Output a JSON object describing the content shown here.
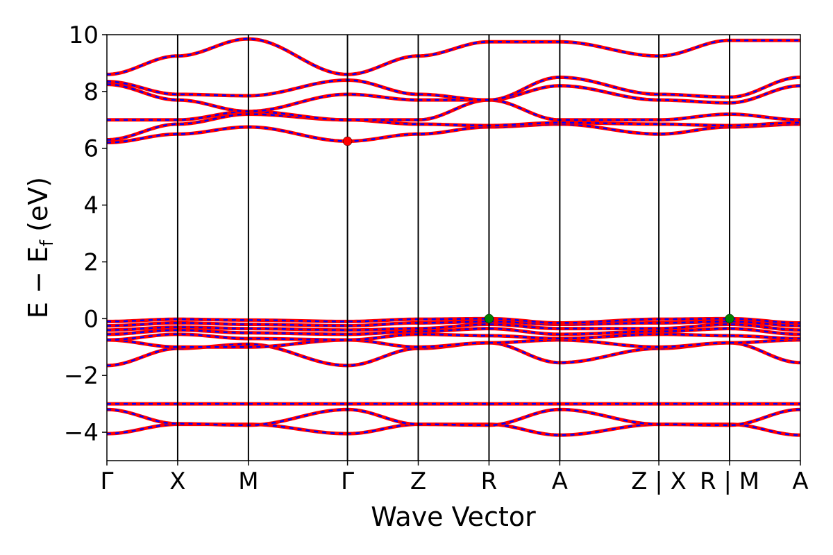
{
  "chart_data": {
    "type": "line",
    "title": "",
    "xlabel": "Wave Vector",
    "ylabel": "E − E",
    "ylabel_sub": "f",
    "ylabel_unit": " (eV)",
    "ylim": [
      -5,
      10
    ],
    "yticks": [
      -4,
      -2,
      0,
      2,
      4,
      6,
      8,
      10
    ],
    "ytick_labels": [
      "−4",
      "−2",
      "0",
      "2",
      "4",
      "6",
      "8",
      "10"
    ],
    "xlim": [
      0,
      9.8
    ],
    "high_symmetry_points": [
      {
        "label": "Γ",
        "x": 0
      },
      {
        "label": "X",
        "x": 1.0
      },
      {
        "label": "M",
        "x": 2.0
      },
      {
        "label": "Γ",
        "x": 3.4
      },
      {
        "label": "Z",
        "x": 4.4
      },
      {
        "label": "R",
        "x": 5.4
      },
      {
        "label": "A",
        "x": 6.4
      },
      {
        "label": "Z | X",
        "x": 7.8
      },
      {
        "label": "R | M",
        "x": 8.8
      },
      {
        "label": "A",
        "x": 9.8
      }
    ],
    "series_colors": {
      "spin_up": "#ff0000",
      "spin_down": "#0000ff"
    },
    "marker_colors": {
      "cbm": "#ff0000",
      "vbm": "#008000"
    },
    "band_edges": [
      {
        "kind": "cbm",
        "x": 3.4,
        "y": 6.25
      },
      {
        "kind": "vbm",
        "x": 5.4,
        "y": 0.0
      },
      {
        "kind": "vbm",
        "x": 8.8,
        "y": 0.0
      }
    ],
    "bands": [
      {
        "points": [
          [
            0,
            -4.05
          ],
          [
            1.0,
            -3.72
          ],
          [
            2.0,
            -3.72
          ],
          [
            3.4,
            -4.05
          ],
          [
            4.4,
            -3.72
          ],
          [
            5.4,
            -3.72
          ],
          [
            6.4,
            -4.1
          ],
          [
            7.8,
            -3.72
          ],
          [
            8.8,
            -3.72
          ],
          [
            9.8,
            -4.1
          ]
        ]
      },
      {
        "points": [
          [
            0,
            -3.2
          ],
          [
            1.0,
            -3.7
          ],
          [
            2.0,
            -3.75
          ],
          [
            3.4,
            -3.2
          ],
          [
            4.4,
            -3.72
          ],
          [
            5.4,
            -3.75
          ],
          [
            6.4,
            -3.2
          ],
          [
            7.8,
            -3.72
          ],
          [
            8.8,
            -3.75
          ],
          [
            9.8,
            -3.2
          ]
        ]
      },
      {
        "points": [
          [
            0,
            -3.0
          ],
          [
            1.0,
            -3.0
          ],
          [
            2.0,
            -3.0
          ],
          [
            3.4,
            -3.0
          ],
          [
            4.4,
            -3.0
          ],
          [
            5.4,
            -3.0
          ],
          [
            6.4,
            -3.0
          ],
          [
            7.8,
            -3.0
          ],
          [
            8.8,
            -3.0
          ],
          [
            9.8,
            -3.0
          ]
        ]
      },
      {
        "points": [
          [
            0,
            -1.65
          ],
          [
            1.0,
            -1.05
          ],
          [
            2.0,
            -0.9
          ],
          [
            3.4,
            -1.65
          ],
          [
            4.4,
            -1.05
          ],
          [
            5.4,
            -0.85
          ],
          [
            6.4,
            -1.55
          ],
          [
            7.8,
            -1.05
          ],
          [
            8.8,
            -0.85
          ],
          [
            9.8,
            -1.55
          ]
        ]
      },
      {
        "points": [
          [
            0,
            -0.75
          ],
          [
            1.0,
            -1.0
          ],
          [
            2.0,
            -1.0
          ],
          [
            3.4,
            -0.75
          ],
          [
            4.4,
            -1.0
          ],
          [
            5.4,
            -0.85
          ],
          [
            6.4,
            -0.75
          ],
          [
            7.8,
            -1.0
          ],
          [
            8.8,
            -0.85
          ],
          [
            9.8,
            -0.75
          ]
        ]
      },
      {
        "points": [
          [
            0,
            -0.75
          ],
          [
            1.0,
            -0.55
          ],
          [
            2.0,
            -0.7
          ],
          [
            3.4,
            -0.75
          ],
          [
            4.4,
            -0.55
          ],
          [
            5.4,
            -0.6
          ],
          [
            6.4,
            -0.7
          ],
          [
            7.8,
            -0.55
          ],
          [
            8.8,
            -0.6
          ],
          [
            9.8,
            -0.7
          ]
        ]
      },
      {
        "points": [
          [
            0,
            -0.55
          ],
          [
            1.0,
            -0.4
          ],
          [
            2.0,
            -0.5
          ],
          [
            3.4,
            -0.55
          ],
          [
            4.4,
            -0.45
          ],
          [
            5.4,
            -0.35
          ],
          [
            6.4,
            -0.55
          ],
          [
            7.8,
            -0.45
          ],
          [
            8.8,
            -0.35
          ],
          [
            9.8,
            -0.55
          ]
        ]
      },
      {
        "points": [
          [
            0,
            -0.4
          ],
          [
            1.0,
            -0.3
          ],
          [
            2.0,
            -0.35
          ],
          [
            3.4,
            -0.4
          ],
          [
            4.4,
            -0.35
          ],
          [
            5.4,
            -0.2
          ],
          [
            6.4,
            -0.35
          ],
          [
            7.8,
            -0.35
          ],
          [
            8.8,
            -0.2
          ],
          [
            9.8,
            -0.4
          ]
        ]
      },
      {
        "points": [
          [
            0,
            -0.25
          ],
          [
            1.0,
            -0.15
          ],
          [
            2.0,
            -0.2
          ],
          [
            3.4,
            -0.25
          ],
          [
            4.4,
            -0.15
          ],
          [
            5.4,
            -0.1
          ],
          [
            6.4,
            -0.2
          ],
          [
            7.8,
            -0.15
          ],
          [
            8.8,
            -0.1
          ],
          [
            9.8,
            -0.25
          ]
        ]
      },
      {
        "points": [
          [
            0,
            -0.1
          ],
          [
            1.0,
            -0.02
          ],
          [
            2.0,
            -0.05
          ],
          [
            3.4,
            -0.1
          ],
          [
            4.4,
            -0.02
          ],
          [
            5.4,
            0.0
          ],
          [
            6.4,
            -0.15
          ],
          [
            7.8,
            -0.02
          ],
          [
            8.8,
            0.0
          ],
          [
            9.8,
            -0.15
          ]
        ]
      },
      {
        "points": [
          [
            0,
            6.2
          ],
          [
            1.0,
            6.5
          ],
          [
            2.0,
            6.75
          ],
          [
            3.4,
            6.25
          ],
          [
            4.4,
            6.5
          ],
          [
            5.4,
            6.75
          ],
          [
            6.4,
            6.85
          ],
          [
            7.8,
            6.5
          ],
          [
            8.8,
            6.75
          ],
          [
            9.8,
            6.85
          ]
        ]
      },
      {
        "points": [
          [
            0,
            6.3
          ],
          [
            1.0,
            6.85
          ],
          [
            2.0,
            7.2
          ],
          [
            3.4,
            7.0
          ],
          [
            4.4,
            6.85
          ],
          [
            5.4,
            6.8
          ],
          [
            6.4,
            6.9
          ],
          [
            7.8,
            6.85
          ],
          [
            8.8,
            6.8
          ],
          [
            9.8,
            6.9
          ]
        ]
      },
      {
        "points": [
          [
            0,
            7.0
          ],
          [
            1.0,
            7.0
          ],
          [
            2.0,
            7.3
          ],
          [
            3.4,
            7.0
          ],
          [
            4.4,
            7.0
          ],
          [
            5.4,
            7.7
          ],
          [
            6.4,
            7.0
          ],
          [
            7.8,
            7.0
          ],
          [
            8.8,
            7.2
          ],
          [
            9.8,
            7.0
          ]
        ]
      },
      {
        "points": [
          [
            0,
            8.25
          ],
          [
            1.0,
            7.7
          ],
          [
            2.0,
            7.3
          ],
          [
            3.4,
            7.9
          ],
          [
            4.4,
            7.7
          ],
          [
            5.4,
            7.7
          ],
          [
            6.4,
            8.2
          ],
          [
            7.8,
            7.7
          ],
          [
            8.8,
            7.6
          ],
          [
            9.8,
            8.2
          ]
        ]
      },
      {
        "points": [
          [
            0,
            8.35
          ],
          [
            1.0,
            7.9
          ],
          [
            2.0,
            7.85
          ],
          [
            3.4,
            8.4
          ],
          [
            4.4,
            7.9
          ],
          [
            5.4,
            7.7
          ],
          [
            6.4,
            8.5
          ],
          [
            7.8,
            7.9
          ],
          [
            8.8,
            7.8
          ],
          [
            9.8,
            8.5
          ]
        ]
      },
      {
        "points": [
          [
            0,
            8.6
          ],
          [
            1.0,
            9.25
          ],
          [
            2.0,
            9.85
          ],
          [
            3.4,
            8.6
          ],
          [
            4.4,
            9.25
          ],
          [
            5.4,
            9.75
          ],
          [
            6.4,
            9.75
          ],
          [
            7.8,
            9.25
          ],
          [
            8.8,
            9.8
          ],
          [
            9.8,
            9.8
          ]
        ]
      }
    ]
  }
}
